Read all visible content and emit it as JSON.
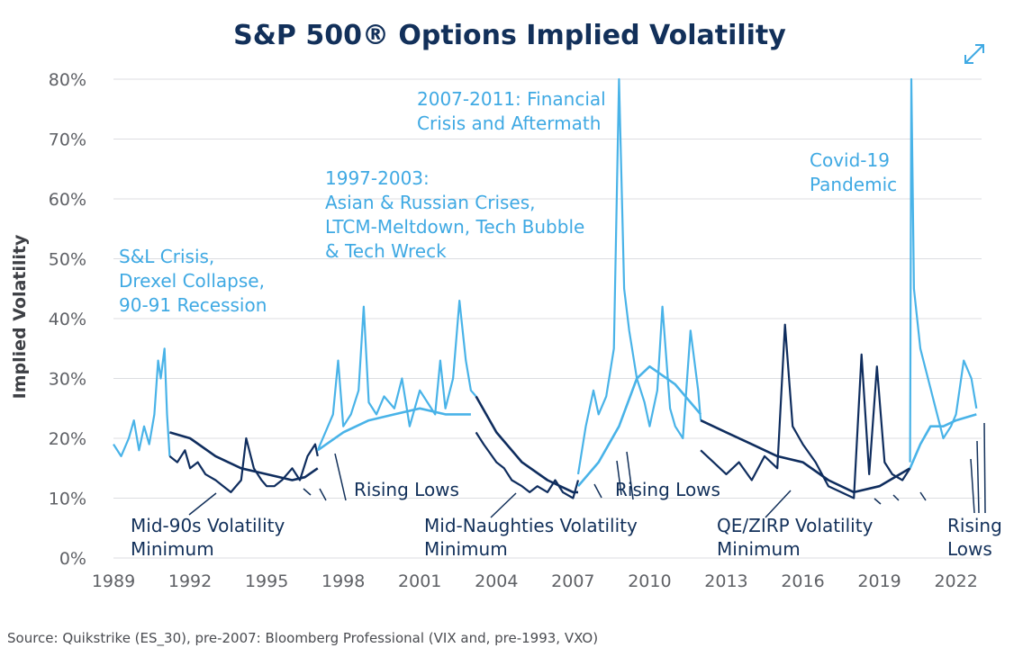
{
  "chart_data": {
    "type": "line",
    "title": "S&P 500® Options Implied Volatility",
    "ylabel": "Implied Volatility",
    "xlabel": "",
    "ylim": [
      0,
      80
    ],
    "yticks": [
      "0%",
      "10%",
      "20%",
      "30%",
      "40%",
      "50%",
      "60%",
      "70%",
      "80%"
    ],
    "xlim": [
      1989,
      2023
    ],
    "xticks": [
      "1989",
      "1992",
      "1995",
      "1998",
      "2001",
      "2004",
      "2007",
      "2010",
      "2013",
      "2016",
      "2019",
      "2022"
    ],
    "grid": true,
    "colors": {
      "light_series": "#49b3e8",
      "dark_series": "#0f2d5e",
      "light_annotation": "#3fa9e3",
      "dark_annotation": "#12305a"
    },
    "series": [
      {
        "x": [
          1989.0,
          1989.3,
          1989.6,
          1989.8,
          1990.0,
          1990.2,
          1990.4,
          1990.6,
          1990.75,
          1990.85,
          1991.0,
          1991.1,
          1991.2
        ],
        "values": [
          19,
          17,
          20,
          23,
          18,
          22,
          19,
          24,
          33,
          30,
          35,
          24,
          17
        ]
      },
      {
        "x": [
          1991.2,
          1991.5,
          1991.8,
          1992.0,
          1992.3,
          1992.6,
          1993.0,
          1993.3,
          1993.6,
          1994.0,
          1994.2,
          1994.5,
          1994.8,
          1995.0,
          1995.3,
          1995.6,
          1996.0,
          1996.3,
          1996.6,
          1996.9,
          1997.0
        ],
        "values": [
          17,
          16,
          18,
          15,
          16,
          14,
          13,
          12,
          11,
          13,
          20,
          15,
          13,
          12,
          12,
          13,
          15,
          13,
          17,
          19,
          17
        ]
      },
      {
        "x": [
          1991.2,
          1992.0,
          1993.0,
          1994.0,
          1995.0,
          1996.0,
          1996.5,
          1997.0
        ],
        "values": [
          21,
          20,
          17,
          15,
          14,
          13,
          13.5,
          15
        ]
      },
      {
        "x": [
          1997.0,
          1997.3,
          1997.6,
          1997.8,
          1998.0,
          1998.3,
          1998.6,
          1998.8,
          1999.0,
          1999.3,
          1999.6,
          2000.0,
          2000.3,
          2000.6,
          2001.0,
          2001.3,
          2001.6,
          2001.8,
          2002.0,
          2002.3,
          2002.55,
          2002.8,
          2003.0,
          2003.2
        ],
        "values": [
          18,
          21,
          24,
          33,
          22,
          24,
          28,
          42,
          26,
          24,
          27,
          25,
          30,
          22,
          28,
          26,
          24,
          33,
          25,
          30,
          43,
          33,
          28,
          27
        ]
      },
      {
        "x": [
          1997.0,
          1998.0,
          1999.0,
          2000.0,
          2001.0,
          2002.0,
          2003.0
        ],
        "values": [
          18,
          21,
          23,
          24,
          25,
          24,
          24
        ]
      },
      {
        "x": [
          2003.2,
          2003.5,
          2004.0,
          2004.3,
          2004.6,
          2005.0,
          2005.3,
          2005.6,
          2006.0,
          2006.3,
          2006.6,
          2007.0,
          2007.2
        ],
        "values": [
          21,
          19,
          16,
          15,
          13,
          12,
          11,
          12,
          11,
          13,
          11,
          10,
          13
        ]
      },
      {
        "x": [
          2003.2,
          2004.0,
          2005.0,
          2006.0,
          2007.0,
          2007.2
        ],
        "values": [
          27,
          21,
          16,
          13,
          11,
          11
        ]
      },
      {
        "x": [
          2007.2,
          2007.5,
          2007.8,
          2008.0,
          2008.3,
          2008.6,
          2008.8,
          2009.0,
          2009.2,
          2009.5,
          2009.8,
          2010.0,
          2010.3,
          2010.5,
          2010.8,
          2011.0,
          2011.3,
          2011.6,
          2011.9,
          2012.0
        ],
        "values": [
          14,
          22,
          28,
          24,
          27,
          35,
          80,
          45,
          38,
          30,
          26,
          22,
          28,
          42,
          25,
          22,
          20,
          38,
          28,
          23
        ]
      },
      {
        "x": [
          2007.2,
          2008.0,
          2008.8,
          2009.5,
          2010.0,
          2011.0,
          2012.0
        ],
        "values": [
          12,
          16,
          22,
          30,
          32,
          29,
          24
        ]
      },
      {
        "x": [
          2012.0,
          2012.5,
          2013.0,
          2013.5,
          2014.0,
          2014.5,
          2015.0,
          2015.3,
          2015.6,
          2016.0,
          2016.5,
          2017.0,
          2017.5,
          2018.0,
          2018.3,
          2018.6,
          2018.9,
          2019.2,
          2019.5,
          2019.9,
          2020.2
        ],
        "values": [
          18,
          16,
          14,
          16,
          13,
          17,
          15,
          39,
          22,
          19,
          16,
          12,
          11,
          10,
          34,
          14,
          32,
          16,
          14,
          13,
          15
        ]
      },
      {
        "x": [
          2012.0,
          2013.0,
          2014.0,
          2015.0,
          2016.0,
          2017.0,
          2018.0,
          2019.0,
          2020.2
        ],
        "values": [
          23,
          21,
          19,
          17,
          16,
          13,
          11,
          12,
          15
        ]
      },
      {
        "x": [
          2020.2,
          2020.25,
          2020.35,
          2020.6,
          2020.9,
          2021.2,
          2021.5,
          2021.8,
          2022.0,
          2022.3,
          2022.6,
          2022.8
        ],
        "values": [
          16,
          80,
          45,
          35,
          30,
          25,
          20,
          22,
          24,
          33,
          30,
          25
        ]
      },
      {
        "x": [
          2020.2,
          2020.6,
          2021.0,
          2021.5,
          2022.0,
          2022.8
        ],
        "values": [
          15,
          19,
          22,
          22,
          23,
          24
        ]
      }
    ],
    "annotations": {
      "sl_crisis": [
        "S&L Crisis,",
        "Drexel Collapse,",
        "90-91 Recession"
      ],
      "asian_crises": [
        "1997-2003:",
        "Asian & Russian Crises,",
        "LTCM-Meltdown, Tech Bubble",
        "& Tech Wreck"
      ],
      "financial_crisis": [
        "2007-2011: Financial",
        "Crisis and Aftermath"
      ],
      "covid": [
        "Covid-19",
        "Pandemic"
      ],
      "mid90s": [
        "Mid-90s Volatility",
        "Minimum"
      ],
      "mid_naughties": [
        "Mid-Naughties Volatility",
        "Minimum"
      ],
      "qe_zirp": [
        "QE/ZIRP Volatility",
        "Minimum"
      ],
      "rising_lows_1": "Rising Lows",
      "rising_lows_2": "Rising Lows",
      "rising_lows_3": [
        "Rising",
        "Lows"
      ]
    },
    "source": "Source: Quikstrike (ES_30), pre-2007: Bloomberg Professional (VIX and, pre-1993, VXO)"
  },
  "icons": {
    "expand": "expand-arrows-icon"
  }
}
